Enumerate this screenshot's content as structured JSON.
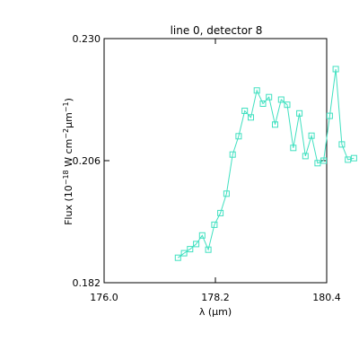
{
  "chart_data": {
    "type": "line",
    "title": "line 0, detector 8",
    "xlabel": "λ (μm)",
    "ylabel_parts": {
      "prefix": "Flux (10",
      "exp1": "−18",
      "mid": " W cm",
      "exp2": "−2",
      "unit": "μm",
      "exp3": "−1",
      "suffix": ")"
    },
    "xlim": [
      176.0,
      180.4
    ],
    "ylim": [
      0.182,
      0.23
    ],
    "xticks": [
      176.0,
      178.2,
      180.4
    ],
    "xtick_labels": [
      "176.0",
      "178.2",
      "180.4"
    ],
    "yticks": [
      0.182,
      0.206,
      0.23
    ],
    "ytick_labels": [
      "0.182",
      "0.206",
      "0.230"
    ],
    "marker": "square",
    "grid": false,
    "colors": {
      "series": "#40e0c0",
      "axis": "#000000"
    },
    "series": [
      {
        "x": [
          177.46,
          177.58,
          177.7,
          177.82,
          177.94,
          178.06,
          178.18,
          178.3,
          178.42,
          178.54,
          178.66,
          178.78,
          178.9,
          179.02,
          179.14,
          179.26,
          179.38,
          179.5,
          179.62,
          179.74,
          179.86,
          179.98,
          180.1,
          180.22,
          180.34,
          180.46,
          180.58,
          180.7,
          180.82,
          180.94
        ],
        "y": [
          0.1869,
          0.1878,
          0.1886,
          0.1896,
          0.1913,
          0.1885,
          0.1934,
          0.1957,
          0.1995,
          0.2072,
          0.2108,
          0.2158,
          0.2145,
          0.2198,
          0.2172,
          0.2185,
          0.2131,
          0.218,
          0.217,
          0.2085,
          0.2153,
          0.2069,
          0.2109,
          0.2055,
          0.206,
          0.2148,
          0.224,
          0.2092,
          0.2062,
          0.2065
        ]
      }
    ]
  }
}
